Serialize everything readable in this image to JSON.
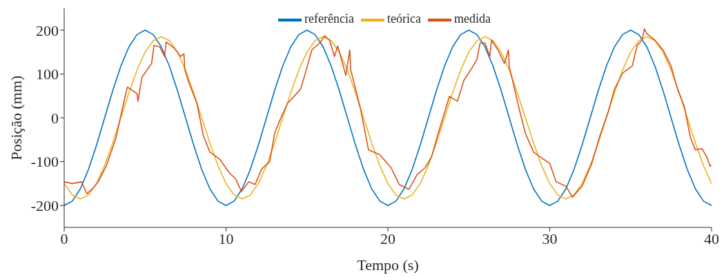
{
  "chart_data": {
    "type": "line",
    "xlabel": "Tempo (s)",
    "ylabel": "Posição (mm)",
    "xlim": [
      0,
      40
    ],
    "xticks": [
      0,
      10,
      20,
      30,
      40
    ],
    "ylim": [
      -250,
      250
    ],
    "yticks": [
      -200,
      -100,
      0,
      100,
      200
    ],
    "grid": false,
    "legend": "top",
    "marker": "none",
    "line_style": "solid",
    "series": [
      {
        "name": "referência",
        "color": "#0072bd",
        "x": [
          0,
          0.5,
          1,
          1.5,
          2,
          2.5,
          3,
          3.5,
          4,
          4.5,
          5,
          5.5,
          6,
          6.5,
          7,
          7.5,
          8,
          8.5,
          9,
          9.5,
          10,
          10.5,
          11,
          11.5,
          12,
          12.5,
          13,
          13.5,
          14,
          14.5,
          15,
          15.5,
          16,
          16.5,
          17,
          17.5,
          18,
          18.5,
          19,
          19.5,
          20,
          20.5,
          21,
          21.5,
          22,
          22.5,
          23,
          23.5,
          24,
          24.5,
          25,
          25.5,
          26,
          26.5,
          27,
          27.5,
          28,
          28.5,
          29,
          29.5,
          30,
          30.5,
          31,
          31.5,
          32,
          32.5,
          33,
          33.5,
          34,
          34.5,
          35,
          35.5,
          36,
          36.5,
          37,
          37.5,
          38,
          38.5,
          39,
          39.5,
          40
        ],
        "values": [
          -200,
          -190,
          -162,
          -118,
          -62,
          0,
          62,
          118,
          162,
          190,
          200,
          190,
          162,
          118,
          62,
          0,
          -62,
          -118,
          -162,
          -190,
          -200,
          -190,
          -162,
          -118,
          -62,
          0,
          62,
          118,
          162,
          190,
          200,
          190,
          162,
          118,
          62,
          0,
          -62,
          -118,
          -162,
          -190,
          -200,
          -190,
          -162,
          -118,
          -62,
          0,
          62,
          118,
          162,
          190,
          200,
          190,
          162,
          118,
          62,
          0,
          -62,
          -118,
          -162,
          -190,
          -200,
          -190,
          -162,
          -118,
          -62,
          0,
          62,
          118,
          162,
          190,
          200,
          190,
          162,
          118,
          62,
          0,
          -62,
          -118,
          -162,
          -190,
          -200
        ]
      },
      {
        "name": "teórica",
        "color": "#edb120",
        "x": [
          0,
          0.5,
          1,
          1.5,
          2,
          2.5,
          3,
          3.5,
          4,
          4.5,
          5,
          5.5,
          6,
          6.5,
          7,
          7.5,
          8,
          8.5,
          9,
          9.5,
          10,
          10.5,
          11,
          11.5,
          12,
          12.5,
          13,
          13.5,
          14,
          14.5,
          15,
          15.5,
          16,
          16.5,
          17,
          17.5,
          18,
          18.5,
          19,
          19.5,
          20,
          20.5,
          21,
          21.5,
          22,
          22.5,
          23,
          23.5,
          24,
          24.5,
          25,
          25.5,
          26,
          26.5,
          27,
          27.5,
          28,
          28.5,
          29,
          29.5,
          30,
          30.5,
          31,
          31.5,
          32,
          32.5,
          33,
          33.5,
          34,
          34.5,
          35,
          35.5,
          36,
          36.5,
          37,
          37.5,
          38,
          38.5,
          39,
          39.5,
          40
        ],
        "values": [
          -150,
          -176,
          -185,
          -176,
          -150,
          -109,
          -57,
          0,
          57,
          109,
          150,
          176,
          185,
          176,
          150,
          109,
          57,
          0,
          -57,
          -109,
          -150,
          -176,
          -185,
          -176,
          -150,
          -109,
          -57,
          0,
          57,
          109,
          150,
          176,
          185,
          176,
          150,
          109,
          57,
          0,
          -57,
          -109,
          -150,
          -176,
          -185,
          -176,
          -150,
          -109,
          -57,
          0,
          57,
          109,
          150,
          176,
          185,
          176,
          150,
          109,
          57,
          0,
          -57,
          -109,
          -150,
          -176,
          -185,
          -176,
          -150,
          -109,
          -57,
          0,
          57,
          109,
          150,
          176,
          185,
          176,
          150,
          109,
          57,
          0,
          -57,
          -109,
          -150
        ]
      },
      {
        "name": "medida",
        "color": "#d95319",
        "x": [
          0,
          0.5,
          1.07,
          1.4,
          1.8,
          2.1,
          2.6,
          3.2,
          3.6,
          3.9,
          4.2,
          4.5,
          4.56,
          4.8,
          5.1,
          5.4,
          5.55,
          5.9,
          6.2,
          6.3,
          6.8,
          7.2,
          7.4,
          7.45,
          7.7,
          8.2,
          8.6,
          9.0,
          9.6,
          10.2,
          10.6,
          10.96,
          11.4,
          11.8,
          12.2,
          12.7,
          13.0,
          13.4,
          13.8,
          14.2,
          14.6,
          14.9,
          15.3,
          15.8,
          16.1,
          16.4,
          16.7,
          16.9,
          17.4,
          17.65,
          17.7,
          17.9,
          18.3,
          18.8,
          19.5,
          20.2,
          20.7,
          21.3,
          21.8,
          22.3,
          22.7,
          23.1,
          23.5,
          23.8,
          24.3,
          24.7,
          25.1,
          25.5,
          25.7,
          26.0,
          26.3,
          26.4,
          26.8,
          27.2,
          27.45,
          27.5,
          27.7,
          28.1,
          28.5,
          29.0,
          29.6,
          30.0,
          30.4,
          31.0,
          31.4,
          32.0,
          32.6,
          33.1,
          33.6,
          34.0,
          34.5,
          35.1,
          35.4,
          35.7,
          35.85,
          36.0,
          36.5,
          37.0,
          37.5,
          37.9,
          38.3,
          38.7,
          39.0,
          39.4,
          39.7,
          39.9,
          40
        ],
        "values": [
          -146,
          -150,
          -146,
          -173,
          -160,
          -146,
          -110,
          -46,
          22,
          70,
          63,
          55,
          38,
          92,
          108,
          124,
          165,
          162,
          140,
          173,
          159,
          140,
          146,
          111,
          81,
          33,
          -41,
          -78,
          -94,
          -125,
          -140,
          -168,
          -146,
          -152,
          -117,
          -100,
          -35,
          1,
          33,
          49,
          65,
          102,
          155,
          171,
          187,
          177,
          140,
          164,
          97,
          155,
          110,
          81,
          22,
          -73,
          -84,
          -114,
          -152,
          -163,
          -130,
          -114,
          -89,
          -36,
          12,
          49,
          38,
          86,
          108,
          133,
          171,
          171,
          140,
          177,
          155,
          124,
          155,
          117,
          86,
          22,
          -36,
          -78,
          -94,
          -104,
          -146,
          -156,
          -181,
          -156,
          -104,
          -41,
          12,
          65,
          102,
          118,
          165,
          177,
          203,
          192,
          177,
          155,
          118,
          65,
          28,
          -46,
          -73,
          -70,
          -89,
          -110,
          -108
        ]
      }
    ]
  }
}
